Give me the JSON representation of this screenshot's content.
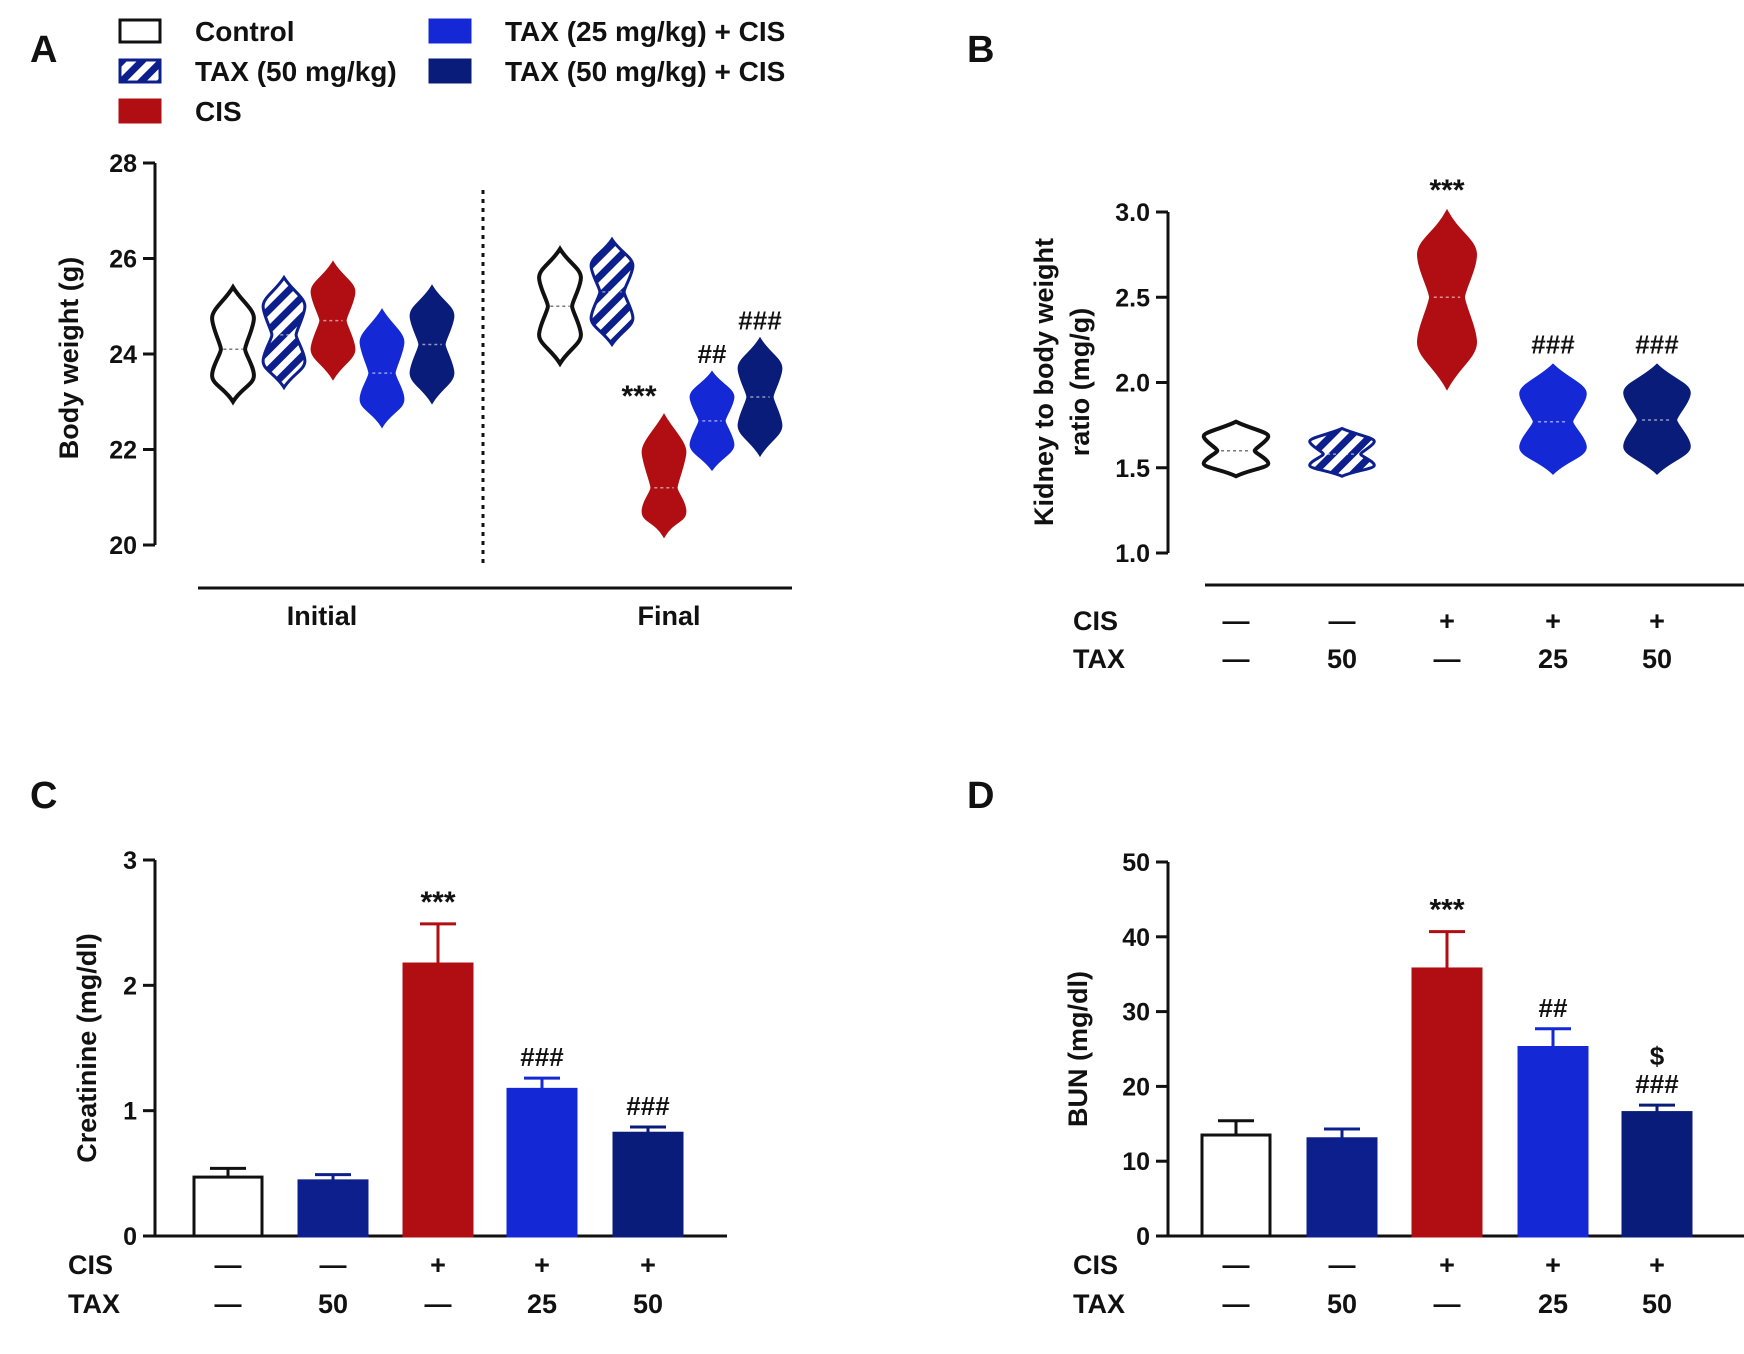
{
  "colors": {
    "control": "#ffffff",
    "tax50": "#0d1f8c",
    "cis": "#b00e12",
    "tax25_cis": "#1428d6",
    "tax50_cis": "#0a1c7a",
    "axis": "#111111"
  },
  "legend": {
    "items": [
      {
        "label": "Control",
        "group": "control"
      },
      {
        "label": "TAX (50 mg/kg)",
        "group": "tax50"
      },
      {
        "label": "CIS",
        "group": "cis"
      },
      {
        "label": "TAX (25 mg/kg) + CIS",
        "group": "tax25_cis"
      },
      {
        "label": "TAX (50 mg/kg) + CIS",
        "group": "tax50_cis"
      }
    ]
  },
  "treatment_rows": {
    "cis_label": "CIS",
    "tax_label": "TAX",
    "cis": [
      "—",
      "—",
      "+",
      "+",
      "+"
    ],
    "tax": [
      "—",
      "50",
      "—",
      "25",
      "50"
    ]
  },
  "chart_data": [
    {
      "panel": "A",
      "type": "violin",
      "ylabel": "Body weight (g)",
      "ylim": [
        20,
        28
      ],
      "yticks": [
        20,
        22,
        24,
        26,
        28
      ],
      "time_groups": [
        "Initial",
        "Final"
      ],
      "groups": [
        "control",
        "tax50",
        "cis",
        "tax25_cis",
        "tax50_cis"
      ],
      "series": [
        {
          "time": "Initial",
          "medians": [
            24.1,
            24.4,
            24.7,
            23.6,
            24.2
          ],
          "ranges": [
            [
              23.0,
              25.4
            ],
            [
              23.3,
              25.6
            ],
            [
              23.5,
              25.9
            ],
            [
              22.5,
              24.9
            ],
            [
              23.0,
              25.4
            ]
          ]
        },
        {
          "time": "Final",
          "medians": [
            25.0,
            25.3,
            21.2,
            22.6,
            23.1
          ],
          "ranges": [
            [
              23.8,
              26.2
            ],
            [
              24.2,
              26.4
            ],
            [
              20.2,
              22.7
            ],
            [
              21.6,
              23.6
            ],
            [
              21.9,
              24.3
            ]
          ]
        }
      ],
      "annotations": [
        {
          "group": "cis",
          "time": "Final",
          "text": "***"
        },
        {
          "group": "tax25_cis",
          "time": "Final",
          "text": "##"
        },
        {
          "group": "tax50_cis",
          "time": "Final",
          "text": "###"
        }
      ]
    },
    {
      "panel": "B",
      "type": "violin",
      "ylabel": "Kidney to body weight ratio (mg/g)",
      "ylabel_lines": [
        "Kidney to body weight",
        "ratio (mg/g)"
      ],
      "ylim": [
        1.0,
        3.0
      ],
      "yticks": [
        "1.0",
        "1.5",
        "2.0",
        "2.5",
        "3.0"
      ],
      "groups": [
        "control",
        "tax50",
        "cis",
        "tax25_cis",
        "tax50_cis"
      ],
      "medians": [
        1.6,
        1.58,
        2.5,
        1.77,
        1.78
      ],
      "ranges": [
        [
          1.45,
          1.77
        ],
        [
          1.45,
          1.73
        ],
        [
          1.97,
          3.0
        ],
        [
          1.47,
          2.1
        ],
        [
          1.47,
          2.1
        ]
      ],
      "annotations": [
        "",
        "",
        "***",
        "###",
        "###"
      ]
    },
    {
      "panel": "C",
      "type": "bar",
      "ylabel": "Creatinine (mg/dl)",
      "ylim": [
        0,
        3
      ],
      "yticks": [
        "0",
        "1",
        "2",
        "3"
      ],
      "groups": [
        "control",
        "tax50",
        "cis",
        "tax25_cis",
        "tax50_cis"
      ],
      "values": [
        0.47,
        0.44,
        2.17,
        1.17,
        0.82
      ],
      "errors": [
        0.07,
        0.05,
        0.32,
        0.09,
        0.05
      ],
      "annotations": [
        "",
        "",
        "***",
        "###",
        "###"
      ]
    },
    {
      "panel": "D",
      "type": "bar",
      "ylabel": "BUN (mg/dl)",
      "ylim": [
        0,
        50
      ],
      "yticks": [
        "0",
        "10",
        "20",
        "30",
        "40",
        "50"
      ],
      "groups": [
        "control",
        "tax50",
        "cis",
        "tax25_cis",
        "tax50_cis"
      ],
      "values": [
        13.5,
        13.0,
        35.7,
        25.2,
        16.5
      ],
      "errors": [
        1.9,
        1.3,
        5.0,
        2.5,
        1.0
      ],
      "annotations": [
        "",
        "",
        "***",
        "##",
        "###"
      ],
      "annotations_extra": [
        "",
        "",
        "",
        "",
        "$"
      ]
    }
  ]
}
